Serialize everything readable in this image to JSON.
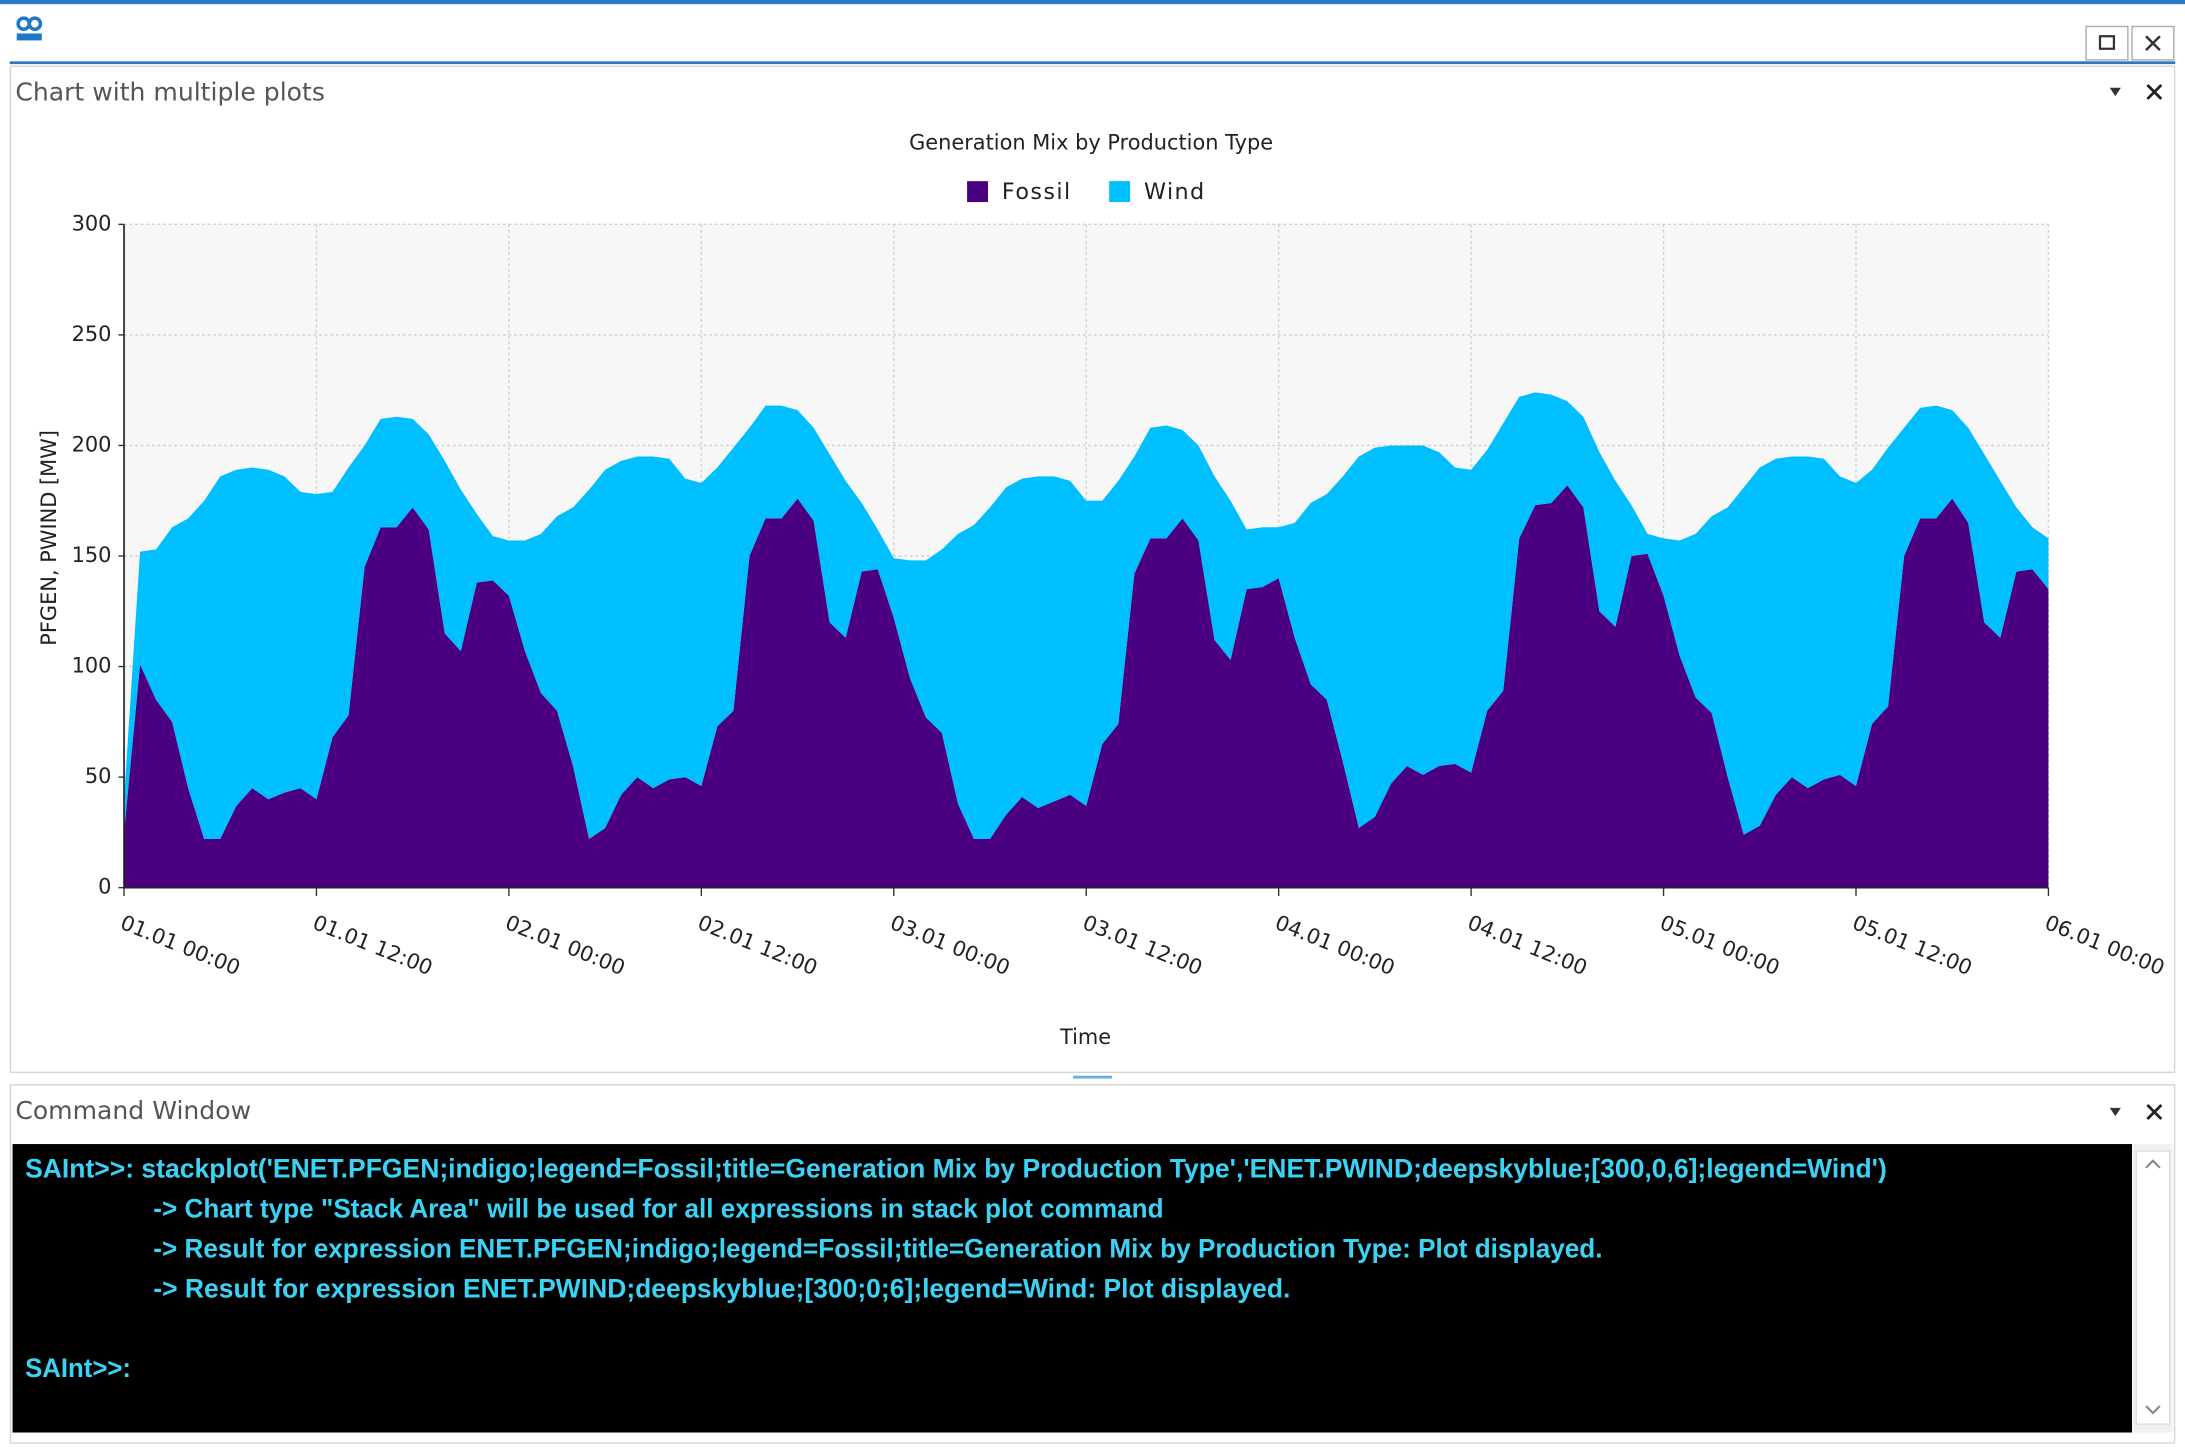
{
  "window": {
    "chart_panel_title": "Chart with multiple plots",
    "command_panel_title": "Command Window"
  },
  "chart_data": {
    "type": "stacked_area",
    "title": "Generation Mix by Production Type",
    "x_label": "Time",
    "y_label": "PFGEN, PWIND [MW]",
    "x": [
      "01.01 00:00",
      "01.01 01:00",
      "01.01 02:00",
      "01.01 03:00",
      "01.01 04:00",
      "01.01 05:00",
      "01.01 06:00",
      "01.01 07:00",
      "01.01 08:00",
      "01.01 09:00",
      "01.01 10:00",
      "01.01 11:00",
      "01.01 12:00",
      "01.01 13:00",
      "01.01 14:00",
      "01.01 15:00",
      "01.01 16:00",
      "01.01 17:00",
      "01.01 18:00",
      "01.01 19:00",
      "01.01 20:00",
      "01.01 21:00",
      "01.01 22:00",
      "01.01 23:00",
      "02.01 00:00",
      "02.01 01:00",
      "02.01 02:00",
      "02.01 03:00",
      "02.01 04:00",
      "02.01 05:00",
      "02.01 06:00",
      "02.01 07:00",
      "02.01 08:00",
      "02.01 09:00",
      "02.01 10:00",
      "02.01 11:00",
      "02.01 12:00",
      "02.01 13:00",
      "02.01 14:00",
      "02.01 15:00",
      "02.01 16:00",
      "02.01 17:00",
      "02.01 18:00",
      "02.01 19:00",
      "02.01 20:00",
      "02.01 21:00",
      "02.01 22:00",
      "02.01 23:00",
      "03.01 00:00",
      "03.01 01:00",
      "03.01 02:00",
      "03.01 03:00",
      "03.01 04:00",
      "03.01 05:00",
      "03.01 06:00",
      "03.01 07:00",
      "03.01 08:00",
      "03.01 09:00",
      "03.01 10:00",
      "03.01 11:00",
      "03.01 12:00",
      "03.01 13:00",
      "03.01 14:00",
      "03.01 15:00",
      "03.01 16:00",
      "03.01 17:00",
      "03.01 18:00",
      "03.01 19:00",
      "03.01 20:00",
      "03.01 21:00",
      "03.01 22:00",
      "03.01 23:00",
      "04.01 00:00",
      "04.01 01:00",
      "04.01 02:00",
      "04.01 03:00",
      "04.01 04:00",
      "04.01 05:00",
      "04.01 06:00",
      "04.01 07:00",
      "04.01 08:00",
      "04.01 09:00",
      "04.01 10:00",
      "04.01 11:00",
      "04.01 12:00",
      "04.01 13:00",
      "04.01 14:00",
      "04.01 15:00",
      "04.01 16:00",
      "04.01 17:00",
      "04.01 18:00",
      "04.01 19:00",
      "04.01 20:00",
      "04.01 21:00",
      "04.01 22:00",
      "04.01 23:00",
      "05.01 00:00",
      "05.01 01:00",
      "05.01 02:00",
      "05.01 03:00",
      "05.01 04:00",
      "05.01 05:00",
      "05.01 06:00",
      "05.01 07:00",
      "05.01 08:00",
      "05.01 09:00",
      "05.01 10:00",
      "05.01 11:00",
      "05.01 12:00",
      "05.01 13:00",
      "05.01 14:00",
      "05.01 15:00",
      "05.01 16:00",
      "05.01 17:00",
      "05.01 18:00",
      "05.01 19:00",
      "05.01 20:00",
      "05.01 21:00",
      "05.01 22:00",
      "05.01 23:00",
      "06.01 00:00"
    ],
    "series": [
      {
        "name": "Fossil",
        "color": "#4b0082",
        "values": [
          25,
          101,
          85,
          75,
          45,
          22,
          22,
          37,
          45,
          40,
          43,
          45,
          40,
          68,
          78,
          145,
          163,
          163,
          172,
          162,
          115,
          107,
          138,
          139,
          132,
          107,
          88,
          80,
          55,
          22,
          27,
          42,
          50,
          45,
          49,
          50,
          46,
          73,
          80,
          150,
          167,
          167,
          176,
          166,
          120,
          113,
          143,
          144,
          122,
          95,
          77,
          70,
          38,
          22,
          22,
          33,
          41,
          36,
          39,
          42,
          37,
          65,
          74,
          142,
          158,
          158,
          167,
          157,
          112,
          103,
          135,
          136,
          140,
          113,
          92,
          85,
          57,
          27,
          32,
          47,
          55,
          51,
          55,
          56,
          52,
          80,
          89,
          158,
          173,
          174,
          182,
          172,
          125,
          118,
          150,
          151,
          132,
          105,
          86,
          79,
          50,
          24,
          28,
          42,
          50,
          45,
          49,
          51,
          46,
          74,
          82,
          150,
          167,
          167,
          176,
          165,
          120,
          113,
          143,
          144,
          135
        ]
      },
      {
        "name": "Wind",
        "color": "#00bfff",
        "values": [
          15,
          51,
          68,
          88,
          122,
          153,
          164,
          152,
          145,
          149,
          143,
          134,
          138,
          111,
          112,
          55,
          49,
          50,
          40,
          43,
          78,
          73,
          31,
          20,
          25,
          50,
          72,
          88,
          117,
          158,
          162,
          151,
          145,
          150,
          145,
          135,
          137,
          117,
          119,
          58,
          51,
          51,
          40,
          42,
          76,
          71,
          31,
          18,
          27,
          53,
          71,
          83,
          122,
          142,
          150,
          148,
          144,
          150,
          147,
          142,
          138,
          110,
          110,
          53,
          50,
          51,
          40,
          43,
          74,
          72,
          27,
          27,
          23,
          52,
          82,
          93,
          129,
          168,
          167,
          153,
          145,
          149,
          142,
          134,
          137,
          118,
          121,
          64,
          51,
          49,
          38,
          41,
          72,
          66,
          23,
          9,
          26,
          52,
          74,
          89,
          122,
          157,
          162,
          152,
          145,
          150,
          145,
          135,
          137,
          115,
          117,
          58,
          50,
          51,
          40,
          43,
          76,
          71,
          29,
          19,
          23
        ]
      }
    ],
    "xlim": [
      "01.01 00:00",
      "06.01 00:00"
    ],
    "xticks": [
      "01.01 00:00",
      "01.01 12:00",
      "02.01 00:00",
      "02.01 12:00",
      "03.01 00:00",
      "03.01 12:00",
      "04.01 00:00",
      "04.01 12:00",
      "05.01 00:00",
      "05.01 12:00",
      "06.01 00:00"
    ],
    "ylim": [
      0,
      300
    ],
    "yticks": [
      0,
      50,
      100,
      150,
      200,
      250,
      300
    ],
    "grid": true,
    "legend": "top"
  },
  "command_window": {
    "lines": [
      "SAInt>>: stackplot('ENET.PFGEN;indigo;legend=Fossil;title=Generation Mix by Production Type','ENET.PWIND;deepskyblue;[300,0,6];legend=Wind')",
      "-> Chart type \"Stack Area\" will be used for all expressions in stack plot command",
      "-> Result for expression ENET.PFGEN;indigo;legend=Fossil;title=Generation Mix by Production Type: Plot displayed.",
      "-> Result for expression ENET.PWIND;deepskyblue;[300;0;6];legend=Wind: Plot displayed."
    ],
    "prompt": "SAInt>>:"
  }
}
